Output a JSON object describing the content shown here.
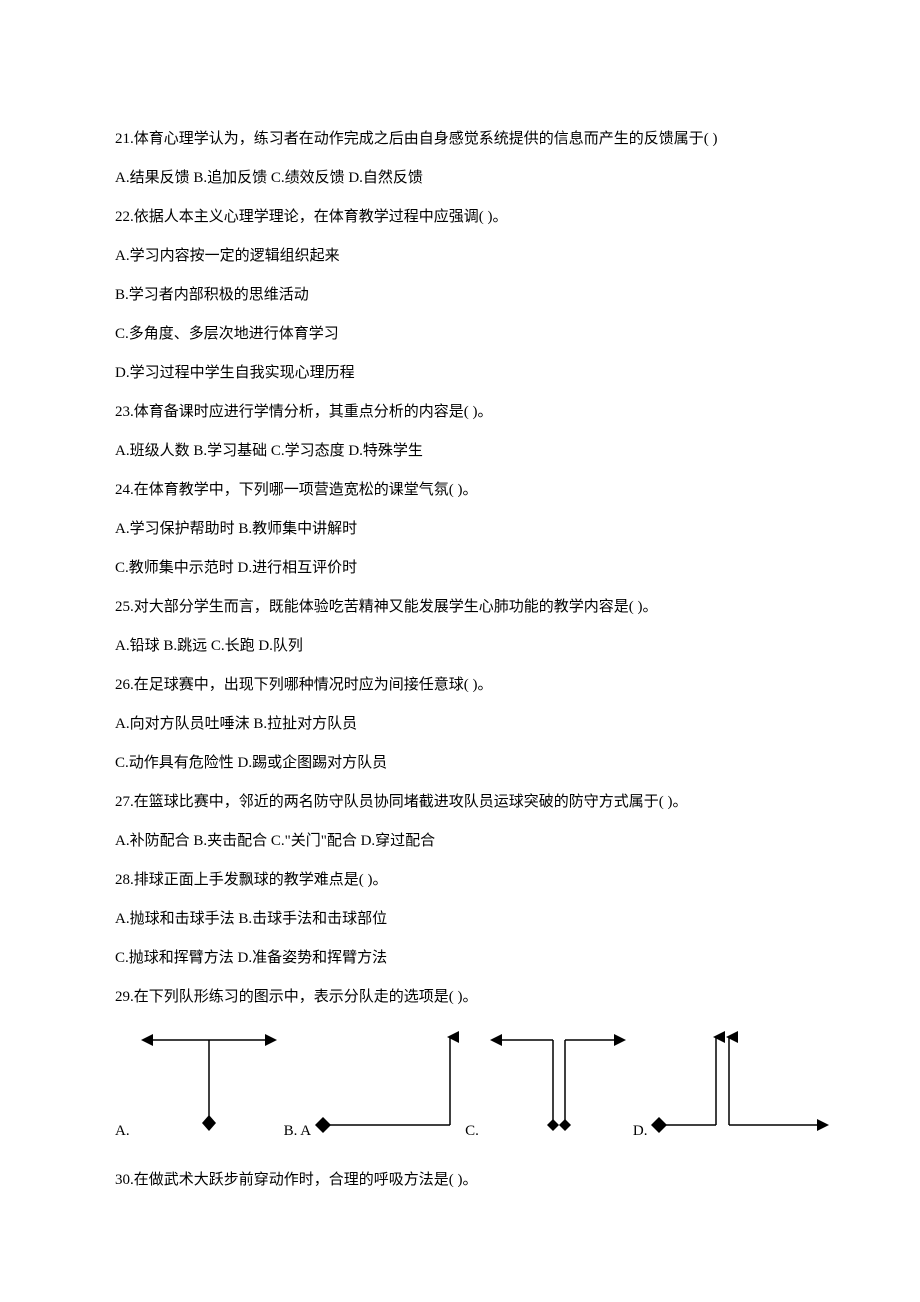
{
  "questions": [
    {
      "number": "21",
      "text": "体育心理学认为，练习者在动作完成之后由自身感觉系统提供的信息而产生的反馈属于( )",
      "options": [
        "A.结果反馈",
        "B.追加反馈",
        "C.绩效反馈",
        "D.自然反馈"
      ]
    },
    {
      "number": "22",
      "text": "依据人本主义心理学理论，在体育教学过程中应强调( )。",
      "options": [
        "A.学习内容按一定的逻辑组织起来",
        "B.学习者内部积极的思维活动",
        "C.多角度、多层次地进行体育学习",
        "D.学习过程中学生自我实现心理历程"
      ],
      "vertical": true
    },
    {
      "number": "23",
      "text": "体育备课时应进行学情分析，其重点分析的内容是( )。",
      "options": [
        "A.班级人数",
        "B.学习基础",
        "C.学习态度",
        "D.特殊学生"
      ]
    },
    {
      "number": "24",
      "text": "在体育教学中，下列哪一项营造宽松的课堂气氛( )。",
      "options": [
        "A.学习保护帮助时",
        "B.教师集中讲解时",
        "C.教师集中示范时",
        "D.进行相互评价时"
      ],
      "split": 2
    },
    {
      "number": "25",
      "text": "对大部分学生而言，既能体验吃苦精神又能发展学生心肺功能的教学内容是( )。",
      "options": [
        "A.铅球",
        "B.跳远",
        "C.长跑",
        "D.队列"
      ]
    },
    {
      "number": "26",
      "text": "在足球赛中，出现下列哪种情况时应为间接任意球( )。",
      "options": [
        "A.向对方队员吐唾沫",
        "B.拉扯对方队员",
        "C.动作具有危险性",
        "D.踢或企图踢对方队员"
      ],
      "split": 2
    },
    {
      "number": "27",
      "text": "在篮球比赛中，邻近的两名防守队员协同堵截进攻队员运球突破的防守方式属于( )。",
      "options": [
        "A.补防配合",
        "B.夹击配合",
        "C.\"关门\"配合",
        "D.穿过配合"
      ]
    },
    {
      "number": "28",
      "text": "排球正面上手发飘球的教学难点是( )。",
      "options": [
        "A.抛球和击球手法",
        "B.击球手法和击球部位",
        "C.抛球和挥臂方法",
        "D.准备姿势和挥臂方法"
      ],
      "split": 2
    },
    {
      "number": "29",
      "text": "在下列队形练习的图示中，表示分队走的选项是( )。",
      "has_diagram": true
    },
    {
      "number": "30",
      "text": "在做武术大跃步前穿动作时，合理的呼吸方法是( )。"
    }
  ],
  "diagram": {
    "labels": [
      "A.",
      "B. A",
      "C.",
      "D."
    ],
    "stroke_color": "#000000",
    "stroke_width": 1.5,
    "diamond_fill": "#000000"
  }
}
